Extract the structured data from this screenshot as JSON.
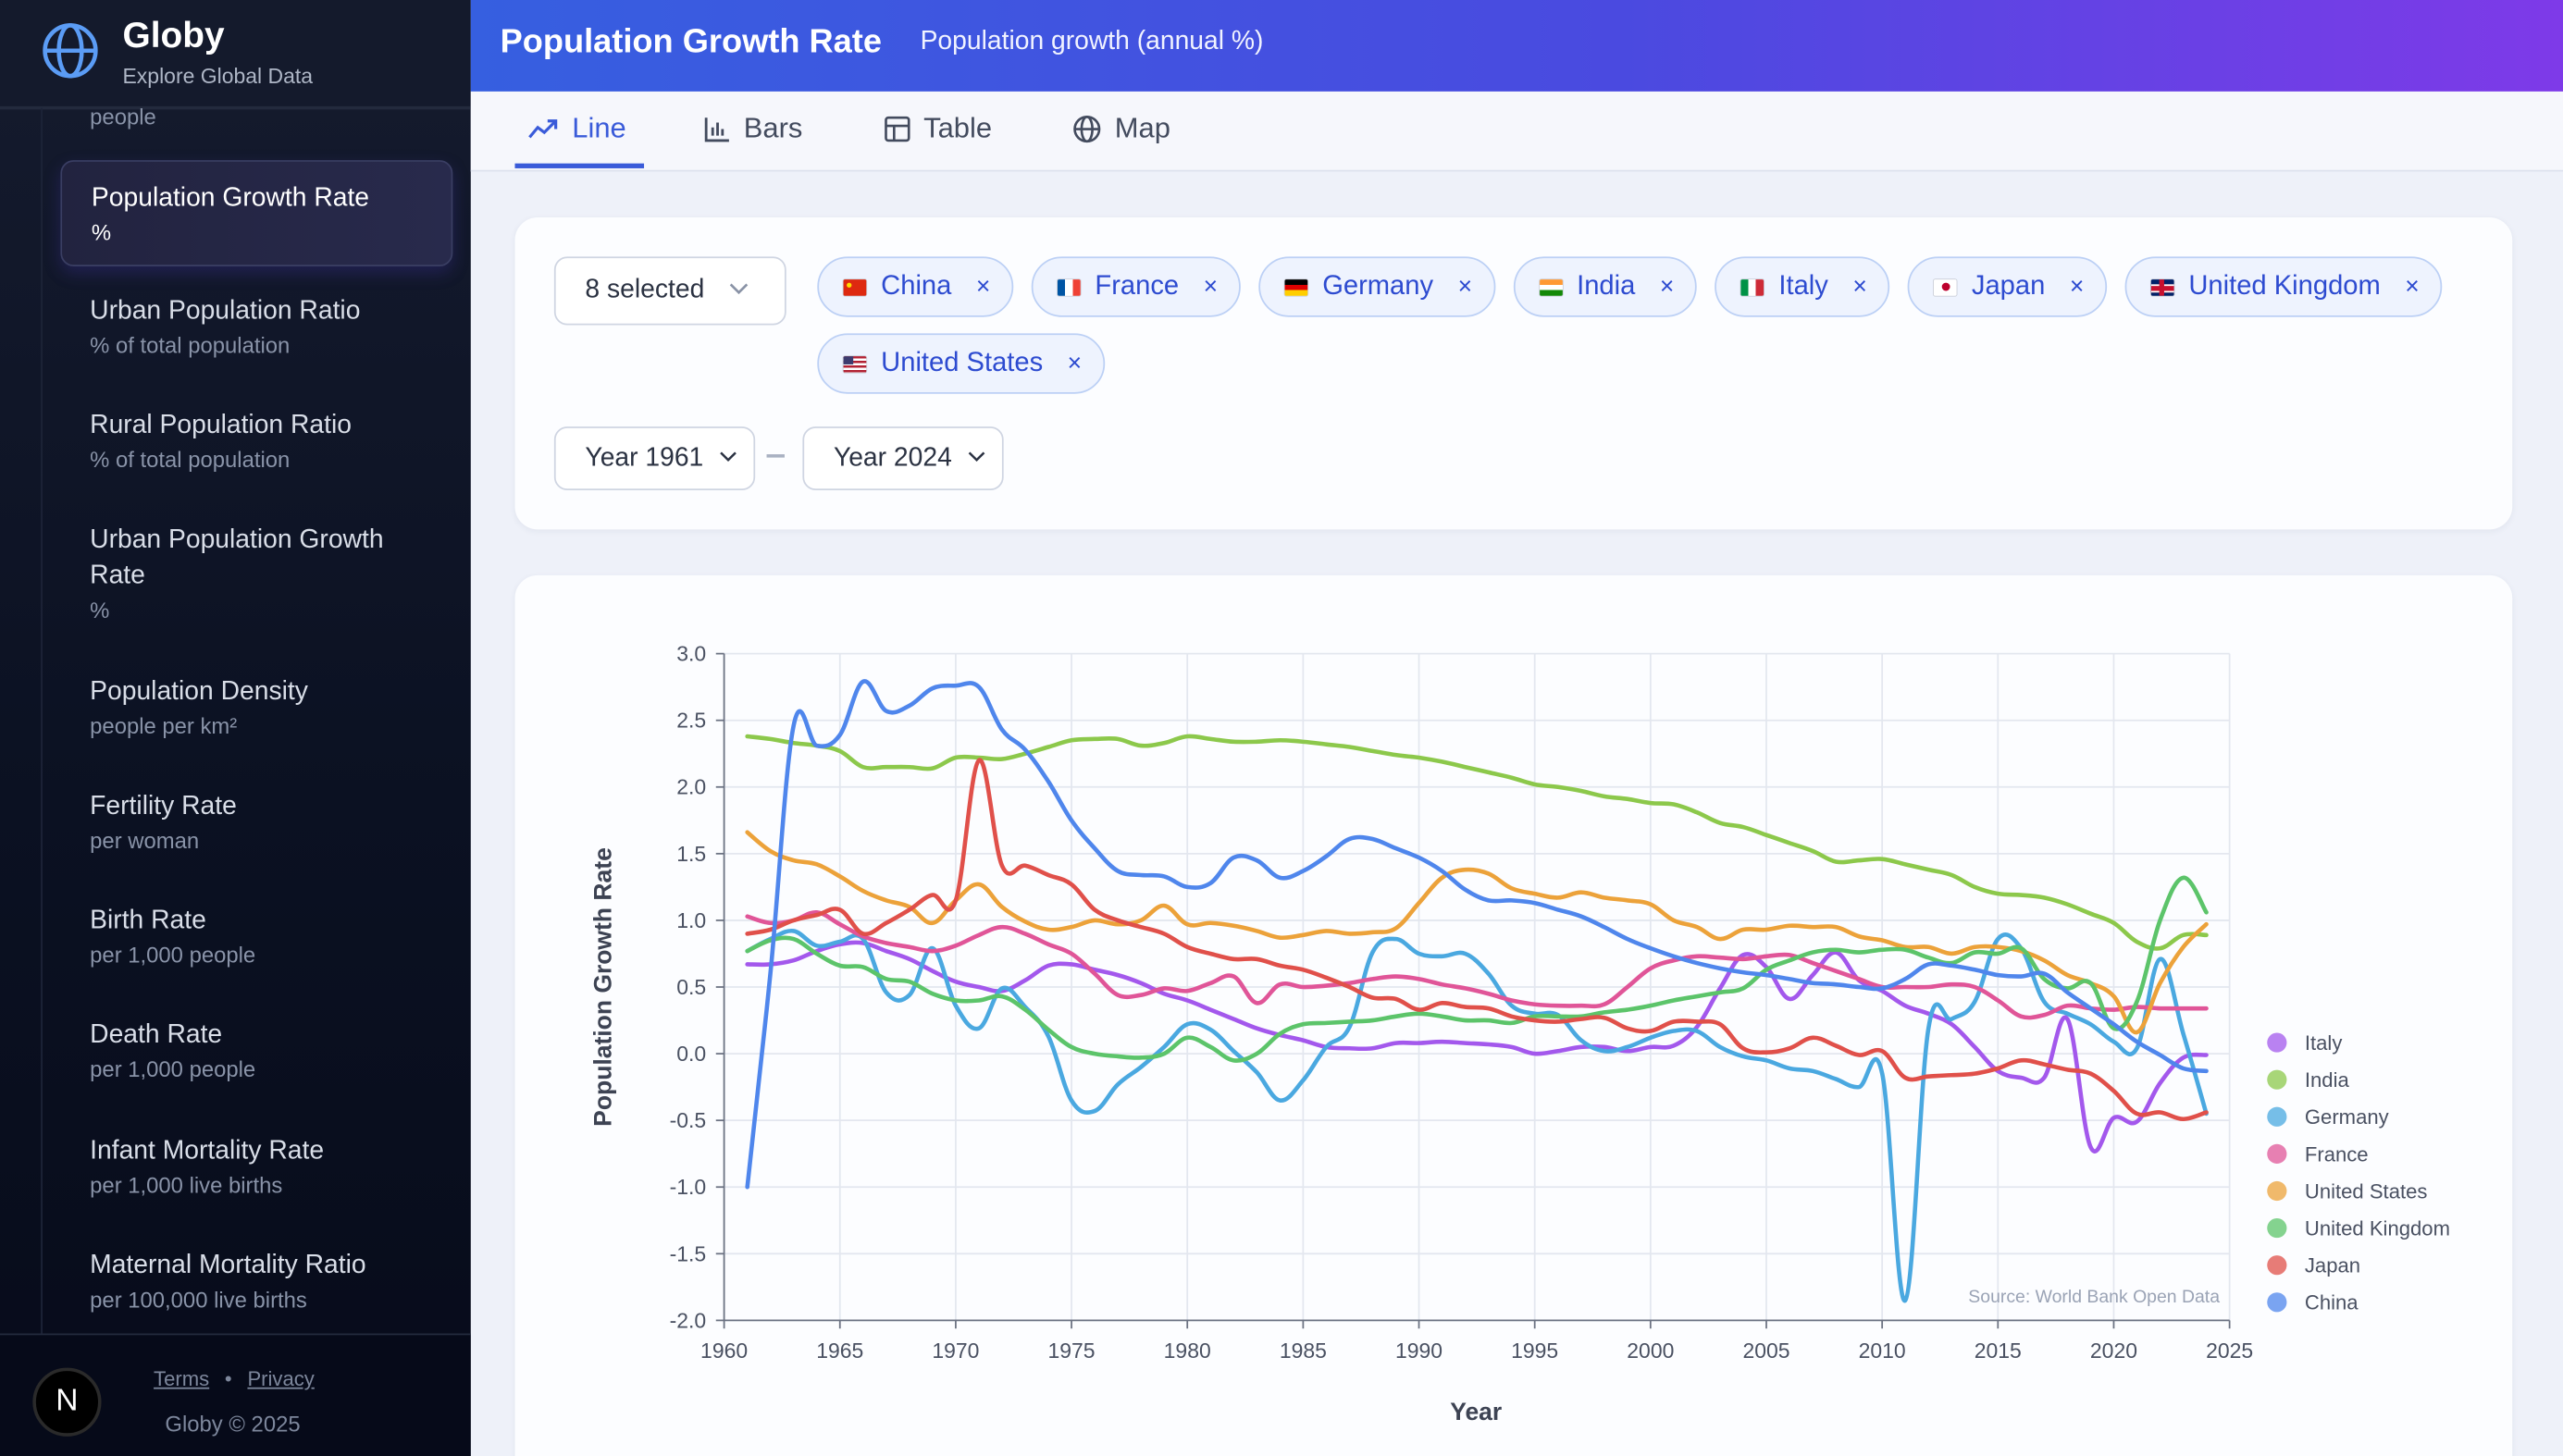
{
  "brand": {
    "name": "Globy",
    "tagline": "Explore Global Data",
    "logo_icon": "globe-icon"
  },
  "sidebar": {
    "partial_top_sub": "people",
    "active": {
      "label": "Population Growth Rate",
      "sub": "%"
    },
    "items": [
      {
        "label": "Urban Population Ratio",
        "sub": "% of total population"
      },
      {
        "label": "Rural Population Ratio",
        "sub": "% of total population"
      },
      {
        "label": "Urban Population Growth Rate",
        "sub": "%"
      },
      {
        "label": "Population Density",
        "sub": "people per km²"
      },
      {
        "label": "Fertility Rate",
        "sub": "per woman"
      },
      {
        "label": "Birth Rate",
        "sub": "per 1,000 people"
      },
      {
        "label": "Death Rate",
        "sub": "per 1,000 people"
      },
      {
        "label": "Infant Mortality Rate",
        "sub": "per 1,000 live births"
      },
      {
        "label": "Maternal Mortality Ratio",
        "sub": "per 100,000 live births"
      }
    ],
    "footer": {
      "badge": "N",
      "terms": "Terms",
      "separator": "•",
      "privacy": "Privacy",
      "copyright": "Globy © 2025"
    }
  },
  "header": {
    "title": "Population Growth Rate",
    "subtitle": "Population growth (annual %)"
  },
  "tabs": [
    {
      "label": "Line",
      "icon": "trend-line-icon",
      "active": true
    },
    {
      "label": "Bars",
      "icon": "bar-chart-icon",
      "active": false
    },
    {
      "label": "Table",
      "icon": "table-icon",
      "active": false
    },
    {
      "label": "Map",
      "icon": "globe-icon",
      "active": false
    }
  ],
  "filters": {
    "country_select": "8 selected",
    "countries": [
      {
        "name": "China",
        "flag": "flag-cn"
      },
      {
        "name": "France",
        "flag": "flag-fr"
      },
      {
        "name": "Germany",
        "flag": "flag-de"
      },
      {
        "name": "India",
        "flag": "flag-in"
      },
      {
        "name": "Italy",
        "flag": "flag-it"
      },
      {
        "name": "Japan",
        "flag": "flag-jp"
      },
      {
        "name": "United Kingdom",
        "flag": "flag-gb"
      },
      {
        "name": "United States",
        "flag": "flag-us"
      }
    ],
    "remove_glyph": "×",
    "year_from": "Year 1961",
    "year_to": "Year 2024"
  },
  "chart_data": {
    "type": "line",
    "xlabel": "Year",
    "ylabel": "Population Growth Rate",
    "source": "Source: World Bank Open Data",
    "xlim": [
      1960,
      2025
    ],
    "ylim": [
      -2.0,
      3.0
    ],
    "x_ticks": [
      "1960",
      "1965",
      "1970",
      "1975",
      "1980",
      "1985",
      "1990",
      "1995",
      "2000",
      "2005",
      "2010",
      "2015",
      "2020",
      "2025"
    ],
    "y_ticks": [
      "3.0",
      "2.5",
      "2.0",
      "1.5",
      "1.0",
      "0.5",
      "0.0",
      "-0.5",
      "-1.0",
      "-1.5",
      "-2.0"
    ],
    "grid": true,
    "legend_position": "right",
    "x_start": 1961,
    "x_end": 2024,
    "series": [
      {
        "name": "Italy",
        "color": "#a358ec",
        "values": [
          0.67,
          0.67,
          0.7,
          0.77,
          0.82,
          0.83,
          0.77,
          0.71,
          0.62,
          0.54,
          0.5,
          0.47,
          0.55,
          0.66,
          0.67,
          0.63,
          0.59,
          0.53,
          0.45,
          0.4,
          0.33,
          0.26,
          0.19,
          0.14,
          0.1,
          0.05,
          0.04,
          0.04,
          0.08,
          0.08,
          0.09,
          0.08,
          0.07,
          0.05,
          0.0,
          0.02,
          0.05,
          0.05,
          0.02,
          0.05,
          0.06,
          0.2,
          0.49,
          0.74,
          0.65,
          0.41,
          0.59,
          0.76,
          0.55,
          0.47,
          0.36,
          0.3,
          0.22,
          0.05,
          -0.13,
          -0.18,
          -0.18,
          0.26,
          -0.7,
          -0.48,
          -0.51,
          -0.22,
          -0.03,
          -0.01
        ]
      },
      {
        "name": "India",
        "color": "#8cc84b",
        "values": [
          2.38,
          2.36,
          2.33,
          2.31,
          2.27,
          2.15,
          2.15,
          2.15,
          2.14,
          2.22,
          2.22,
          2.21,
          2.25,
          2.3,
          2.35,
          2.36,
          2.36,
          2.31,
          2.33,
          2.38,
          2.36,
          2.34,
          2.34,
          2.35,
          2.34,
          2.32,
          2.3,
          2.27,
          2.24,
          2.22,
          2.19,
          2.15,
          2.11,
          2.07,
          2.02,
          2.0,
          1.97,
          1.93,
          1.91,
          1.88,
          1.87,
          1.81,
          1.73,
          1.7,
          1.64,
          1.58,
          1.52,
          1.44,
          1.45,
          1.46,
          1.42,
          1.38,
          1.34,
          1.25,
          1.2,
          1.19,
          1.17,
          1.12,
          1.05,
          0.98,
          0.84,
          0.79,
          0.89,
          0.89
        ]
      },
      {
        "name": "Germany",
        "color": "#4aa8e0",
        "values": [
          0.77,
          0.86,
          0.92,
          0.81,
          0.84,
          0.86,
          0.46,
          0.44,
          0.79,
          0.36,
          0.19,
          0.49,
          0.35,
          0.13,
          -0.35,
          -0.43,
          -0.23,
          -0.1,
          0.05,
          0.22,
          0.18,
          0.02,
          -0.14,
          -0.35,
          -0.2,
          0.05,
          0.2,
          0.76,
          0.86,
          0.75,
          0.73,
          0.75,
          0.6,
          0.36,
          0.3,
          0.29,
          0.1,
          0.02,
          0.05,
          0.12,
          0.17,
          0.17,
          0.05,
          -0.02,
          -0.05,
          -0.11,
          -0.13,
          -0.19,
          -0.25,
          -0.15,
          -1.85,
          0.19,
          0.26,
          0.39,
          0.86,
          0.79,
          0.39,
          0.3,
          0.22,
          0.09,
          0.04,
          0.71,
          0.15,
          -0.45
        ]
      },
      {
        "name": "France",
        "color": "#e05598",
        "values": [
          1.03,
          0.98,
          1.0,
          1.06,
          0.97,
          0.88,
          0.83,
          0.8,
          0.77,
          0.81,
          0.89,
          0.95,
          0.9,
          0.82,
          0.75,
          0.6,
          0.44,
          0.44,
          0.49,
          0.47,
          0.53,
          0.58,
          0.38,
          0.52,
          0.5,
          0.51,
          0.53,
          0.56,
          0.58,
          0.56,
          0.52,
          0.49,
          0.45,
          0.4,
          0.37,
          0.36,
          0.36,
          0.37,
          0.5,
          0.64,
          0.7,
          0.73,
          0.72,
          0.71,
          0.73,
          0.74,
          0.68,
          0.62,
          0.56,
          0.5,
          0.5,
          0.5,
          0.52,
          0.5,
          0.4,
          0.28,
          0.29,
          0.36,
          0.34,
          0.33,
          0.35,
          0.34,
          0.34,
          0.34
        ]
      },
      {
        "name": "United States",
        "color": "#eca23a",
        "values": [
          1.66,
          1.52,
          1.45,
          1.42,
          1.33,
          1.22,
          1.15,
          1.1,
          0.98,
          1.15,
          1.27,
          1.1,
          0.99,
          0.93,
          0.95,
          1.0,
          0.97,
          1.0,
          1.11,
          0.97,
          0.98,
          0.96,
          0.92,
          0.87,
          0.89,
          0.92,
          0.9,
          0.91,
          0.94,
          1.13,
          1.32,
          1.38,
          1.35,
          1.24,
          1.2,
          1.17,
          1.21,
          1.17,
          1.15,
          1.12,
          1.0,
          0.95,
          0.86,
          0.93,
          0.93,
          0.96,
          0.95,
          0.95,
          0.88,
          0.85,
          0.8,
          0.8,
          0.75,
          0.8,
          0.8,
          0.77,
          0.7,
          0.59,
          0.53,
          0.43,
          0.16,
          0.53,
          0.8,
          0.97
        ]
      },
      {
        "name": "United Kingdom",
        "color": "#5cc46a",
        "values": [
          0.77,
          0.85,
          0.86,
          0.75,
          0.66,
          0.65,
          0.56,
          0.54,
          0.45,
          0.4,
          0.4,
          0.43,
          0.33,
          0.18,
          0.05,
          0.0,
          -0.02,
          -0.03,
          0.0,
          0.12,
          0.05,
          -0.05,
          0.0,
          0.15,
          0.22,
          0.23,
          0.24,
          0.25,
          0.28,
          0.3,
          0.28,
          0.25,
          0.25,
          0.23,
          0.28,
          0.28,
          0.28,
          0.31,
          0.33,
          0.36,
          0.4,
          0.43,
          0.46,
          0.49,
          0.63,
          0.7,
          0.76,
          0.78,
          0.76,
          0.78,
          0.78,
          0.72,
          0.68,
          0.76,
          0.75,
          0.79,
          0.56,
          0.49,
          0.53,
          0.19,
          0.39,
          1.0,
          1.32,
          1.06
        ]
      },
      {
        "name": "Japan",
        "color": "#e0504a",
        "values": [
          0.9,
          0.93,
          1.0,
          1.04,
          1.08,
          0.9,
          0.98,
          1.08,
          1.19,
          1.15,
          2.2,
          1.41,
          1.41,
          1.34,
          1.27,
          1.08,
          1.0,
          0.95,
          0.9,
          0.8,
          0.75,
          0.71,
          0.71,
          0.66,
          0.63,
          0.57,
          0.5,
          0.42,
          0.41,
          0.33,
          0.38,
          0.35,
          0.34,
          0.28,
          0.25,
          0.24,
          0.26,
          0.27,
          0.19,
          0.17,
          0.24,
          0.24,
          0.22,
          0.04,
          0.01,
          0.04,
          0.12,
          0.06,
          -0.01,
          0.02,
          -0.18,
          -0.17,
          -0.16,
          -0.15,
          -0.11,
          -0.05,
          -0.08,
          -0.12,
          -0.15,
          -0.28,
          -0.45,
          -0.44,
          -0.49,
          -0.44
        ]
      },
      {
        "name": "China",
        "color": "#4f86ec",
        "values": [
          -1.0,
          0.6,
          2.46,
          2.31,
          2.39,
          2.79,
          2.57,
          2.61,
          2.74,
          2.76,
          2.75,
          2.43,
          2.28,
          2.04,
          1.75,
          1.54,
          1.37,
          1.34,
          1.33,
          1.25,
          1.28,
          1.47,
          1.45,
          1.32,
          1.37,
          1.48,
          1.61,
          1.61,
          1.54,
          1.47,
          1.37,
          1.23,
          1.15,
          1.15,
          1.13,
          1.08,
          1.03,
          0.95,
          0.86,
          0.79,
          0.73,
          0.68,
          0.64,
          0.61,
          0.59,
          0.56,
          0.53,
          0.52,
          0.5,
          0.49,
          0.56,
          0.67,
          0.66,
          0.63,
          0.59,
          0.58,
          0.6,
          0.46,
          0.34,
          0.22,
          0.09,
          -0.01,
          -0.11,
          -0.13
        ]
      }
    ]
  }
}
